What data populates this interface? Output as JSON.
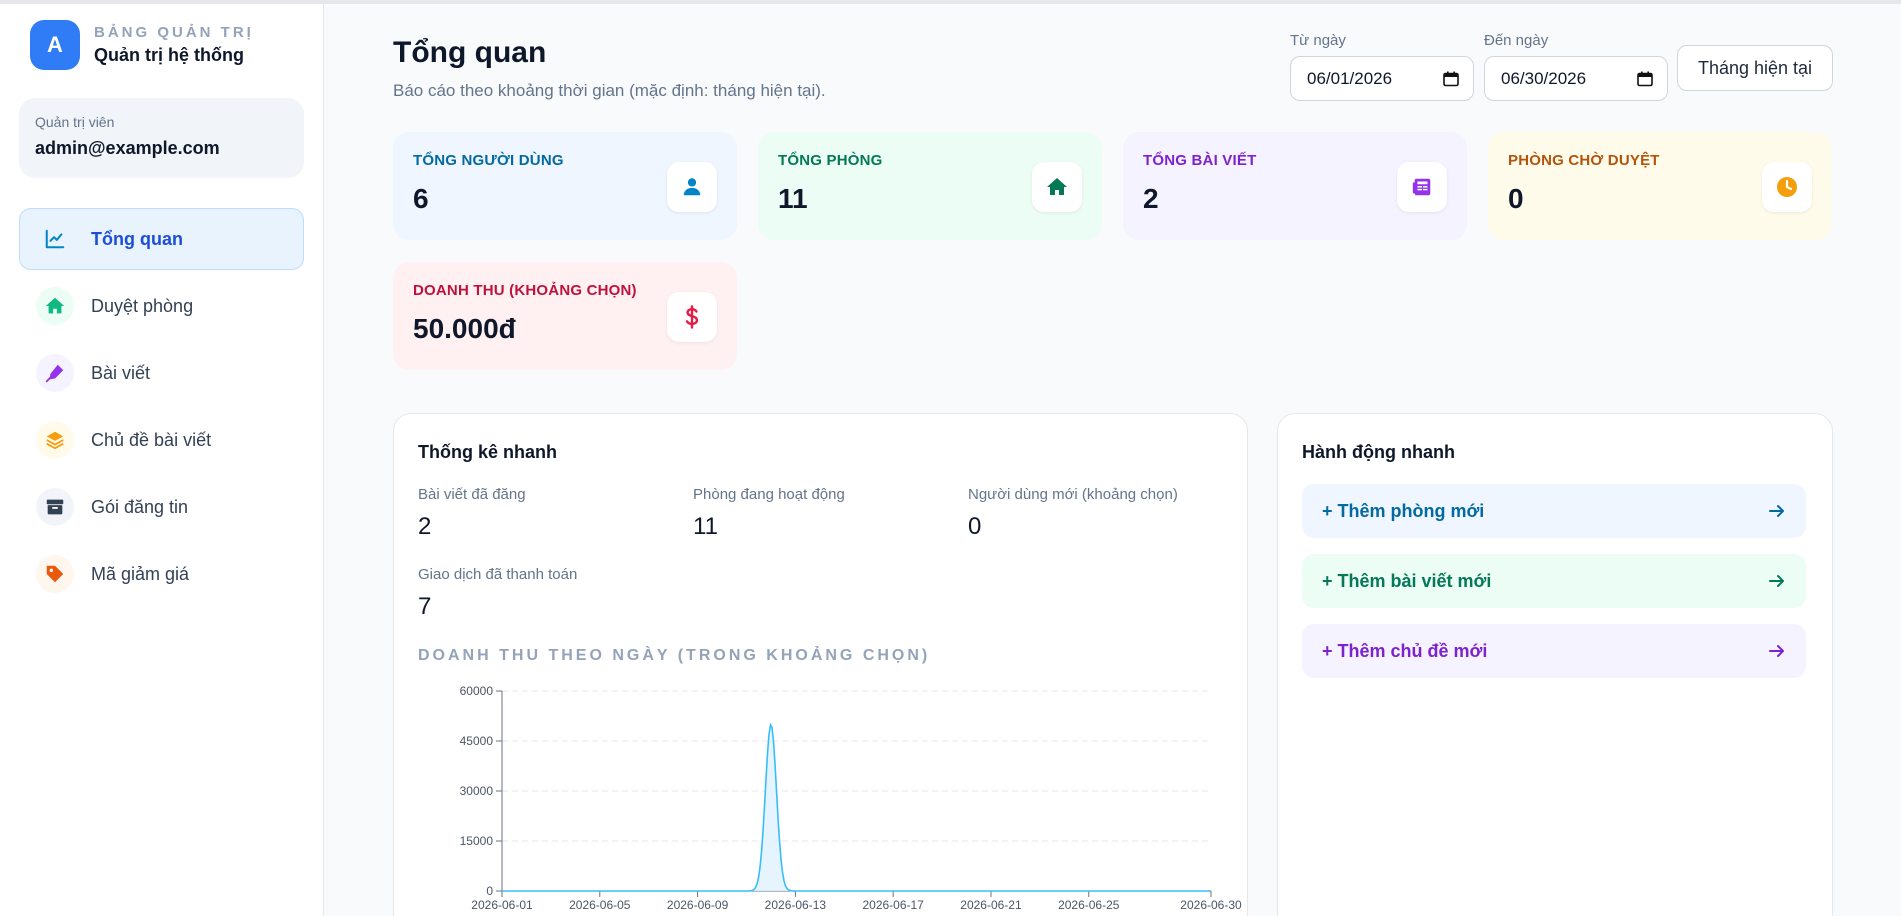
{
  "brand": {
    "avatar_letter": "A",
    "kicker": "BẢNG QUẢN TRỊ",
    "name": "Quản trị hệ thống"
  },
  "admin": {
    "label": "Quản trị viên",
    "email": "admin@example.com"
  },
  "sidebar": {
    "items": [
      {
        "label": "Tổng quan",
        "icon": "chart-line-icon",
        "active": true
      },
      {
        "label": "Duyệt phòng",
        "icon": "home-icon"
      },
      {
        "label": "Bài viết",
        "icon": "pen-nib-icon"
      },
      {
        "label": "Chủ đề bài viết",
        "icon": "layers-icon"
      },
      {
        "label": "Gói đăng tin",
        "icon": "box-icon"
      },
      {
        "label": "Mã giảm giá",
        "icon": "tag-icon"
      }
    ]
  },
  "header": {
    "title": "Tổng quan",
    "subtitle": "Báo cáo theo khoảng thời gian (mặc định: tháng hiện tại).",
    "from_label": "Từ ngày",
    "from_value": "06/01/2026",
    "to_label": "Đến ngày",
    "to_value": "06/30/2026",
    "month_button": "Tháng hiện tại"
  },
  "stats": [
    {
      "label": "TỔNG NGƯỜI DÙNG",
      "value": "6",
      "icon": "user-icon",
      "color": "#0369a1",
      "bg": "#eff6ff"
    },
    {
      "label": "TỔNG PHÒNG",
      "value": "11",
      "icon": "home-icon",
      "color": "#047857",
      "bg": "#ecfdf5"
    },
    {
      "label": "TỔNG BÀI VIẾT",
      "value": "2",
      "icon": "newspaper-icon",
      "color": "#7e22ce",
      "bg": "#f5f3ff"
    },
    {
      "label": "PHÒNG CHỜ DUYỆT",
      "value": "0",
      "icon": "clock-icon",
      "color": "#b45309",
      "bg": "#fffbeb"
    },
    {
      "label": "DOANH THU (KHOẢNG CHỌN)",
      "value": "50.000đ",
      "icon": "dollar-icon",
      "color": "#be123c",
      "bg": "#fff1f2"
    }
  ],
  "quick_stats": {
    "title": "Thống kê nhanh",
    "items": [
      {
        "label": "Bài viết đã đăng",
        "value": "2"
      },
      {
        "label": "Phòng đang hoạt động",
        "value": "11"
      },
      {
        "label": "Người dùng mới (khoảng chọn)",
        "value": "0"
      },
      {
        "label": "Giao dịch đã thanh toán",
        "value": "7"
      }
    ],
    "chart_title": "DOANH THU THEO NGÀY (TRONG KHOẢNG CHỌN)"
  },
  "quick_actions": {
    "title": "Hành động nhanh",
    "items": [
      {
        "label": "+ Thêm phòng mới",
        "color": "#0369a1",
        "bg": "#eff6ff"
      },
      {
        "label": "+ Thêm bài viết mới",
        "color": "#047857",
        "bg": "#ecfdf5"
      },
      {
        "label": "+ Thêm chủ đề mới",
        "color": "#7e22ce",
        "bg": "#f5f3ff"
      }
    ]
  },
  "chart_data": {
    "type": "area",
    "title": "DOANH THU THEO NGÀY (TRONG KHOẢNG CHỌN)",
    "xlabel": "",
    "ylabel": "",
    "ylim": [
      0,
      60000
    ],
    "yticks": [
      0,
      15000,
      30000,
      45000,
      60000
    ],
    "xticks": [
      "2026-06-01",
      "2026-06-05",
      "2026-06-09",
      "2026-06-13",
      "2026-06-17",
      "2026-06-21",
      "2026-06-25",
      "2026-06-30"
    ],
    "x": [
      "2026-06-01",
      "2026-06-02",
      "2026-06-03",
      "2026-06-04",
      "2026-06-05",
      "2026-06-06",
      "2026-06-07",
      "2026-06-08",
      "2026-06-09",
      "2026-06-10",
      "2026-06-11",
      "2026-06-12",
      "2026-06-13",
      "2026-06-14",
      "2026-06-15",
      "2026-06-16",
      "2026-06-17",
      "2026-06-18",
      "2026-06-19",
      "2026-06-20",
      "2026-06-21",
      "2026-06-22",
      "2026-06-23",
      "2026-06-24",
      "2026-06-25",
      "2026-06-26",
      "2026-06-27",
      "2026-06-28",
      "2026-06-29",
      "2026-06-30"
    ],
    "values": [
      0,
      0,
      0,
      0,
      0,
      0,
      0,
      0,
      0,
      0,
      0,
      50000,
      0,
      0,
      0,
      0,
      0,
      0,
      0,
      0,
      0,
      0,
      0,
      0,
      0,
      0,
      0,
      0,
      0,
      0
    ],
    "grid": "horizontal-dashed",
    "colors": {
      "line": "#38bdf8",
      "fill": "#e0f2fe"
    }
  }
}
